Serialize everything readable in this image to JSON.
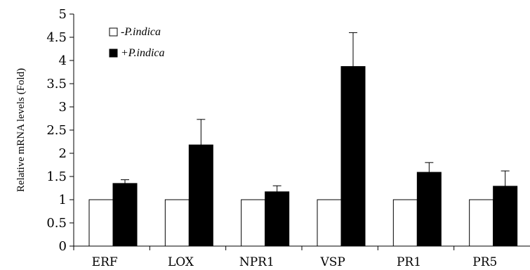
{
  "chart_data": {
    "type": "bar",
    "categories": [
      "ERF",
      "LOX",
      "NPR1",
      "VSP",
      "PR1",
      "PR5"
    ],
    "series": [
      {
        "name": "-P.indica",
        "color": "#ffffff",
        "values": [
          1,
          1,
          1,
          1,
          1,
          1
        ],
        "errors": [
          0,
          0,
          0,
          0,
          0,
          0
        ]
      },
      {
        "name": "+P.indica",
        "color": "#000000",
        "values": [
          1.35,
          2.18,
          1.17,
          3.87,
          1.59,
          1.29
        ],
        "errors": [
          0.08,
          0.55,
          0.13,
          0.73,
          0.21,
          0.33
        ]
      }
    ],
    "title": "",
    "xlabel": "",
    "ylabel": "Relative mRNA levels (Fold)",
    "ylim": [
      0,
      5
    ],
    "yticks": [
      "0",
      "0.5",
      "1",
      "1.5",
      "2",
      "2.5",
      "3",
      "3.5",
      "4",
      "4.5",
      "5"
    ],
    "grid": false,
    "legend_position": "top-left"
  }
}
